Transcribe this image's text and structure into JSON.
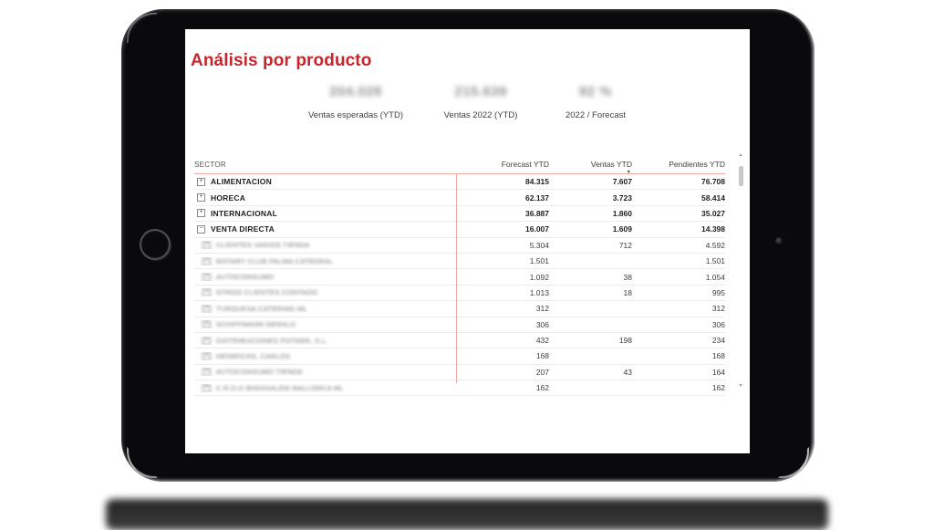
{
  "device": {
    "type": "tablet",
    "frame_color": "#0a0a0c"
  },
  "report": {
    "title": "Análisis por producto",
    "title_color": "#c4262b",
    "accent_line_color": "#efa9a3",
    "kpis": [
      {
        "value": "204.028",
        "label": "Ventas esperadas (YTD)",
        "blurred": true
      },
      {
        "value": "215.639",
        "label": "Ventas 2022 (YTD)",
        "blurred": true
      },
      {
        "value": "92 %",
        "label": "2022 / Forecast",
        "blurred": true
      }
    ],
    "table": {
      "columns": [
        "SECTOR",
        "Forecast YTD",
        "Ventas YTD",
        "Pendientes YTD"
      ],
      "sorted_by": "Ventas YTD",
      "sort_direction": "desc",
      "rows": [
        {
          "type": "section",
          "icon": "expand",
          "blurred": false,
          "label": "ALIMENTACION",
          "forecast": "84.315",
          "ventas": "7.607",
          "pendientes": "76.708"
        },
        {
          "type": "section",
          "icon": "expand",
          "blurred": false,
          "label": "HORECA",
          "forecast": "62.137",
          "ventas": "3.723",
          "pendientes": "58.414"
        },
        {
          "type": "section",
          "icon": "expand",
          "blurred": false,
          "label": "INTERNACIONAL",
          "forecast": "36.887",
          "ventas": "1.860",
          "pendientes": "35.027"
        },
        {
          "type": "section",
          "icon": "collapse",
          "blurred": false,
          "label": "VENTA DIRECTA",
          "forecast": "16.007",
          "ventas": "1.609",
          "pendientes": "14.398"
        },
        {
          "type": "child",
          "icon": "expand",
          "blurred": true,
          "label": "CLIENTES VARIOS TIENDA",
          "forecast": "5.304",
          "ventas": "712",
          "pendientes": "4.592"
        },
        {
          "type": "child",
          "icon": "expand",
          "blurred": true,
          "label": "ROTARY CLUB PALMA CATEDRAL",
          "forecast": "1.501",
          "ventas": "",
          "pendientes": "1.501"
        },
        {
          "type": "child",
          "icon": "expand",
          "blurred": true,
          "label": "AUTOCONSUMO",
          "forecast": "1.092",
          "ventas": "38",
          "pendientes": "1.054"
        },
        {
          "type": "child",
          "icon": "expand",
          "blurred": true,
          "label": "OTROS CLIENTES CONTADO",
          "forecast": "1.013",
          "ventas": "18",
          "pendientes": "995"
        },
        {
          "type": "child",
          "icon": "expand",
          "blurred": true,
          "label": "TURQUESA CATERING ML",
          "forecast": "312",
          "ventas": "",
          "pendientes": "312"
        },
        {
          "type": "child",
          "icon": "expand",
          "blurred": true,
          "label": "SCHIFFMANN GERALD",
          "forecast": "306",
          "ventas": "",
          "pendientes": "306"
        },
        {
          "type": "child",
          "icon": "expand",
          "blurred": true,
          "label": "DISTRIBUCIONES FOTGER, S.L.",
          "forecast": "432",
          "ventas": "198",
          "pendientes": "234"
        },
        {
          "type": "child",
          "icon": "expand",
          "blurred": true,
          "label": "HEINRICHS, CARLOS",
          "forecast": "168",
          "ventas": "",
          "pendientes": "168"
        },
        {
          "type": "child",
          "icon": "expand",
          "blurred": true,
          "label": "AUTOCONSUMO TIENDA",
          "forecast": "207",
          "ventas": "43",
          "pendientes": "164"
        },
        {
          "type": "child",
          "icon": "expand",
          "blurred": true,
          "label": "C.R.D.O BINISSALEM MALLORCA ML",
          "forecast": "162",
          "ventas": "",
          "pendientes": "162"
        }
      ]
    }
  },
  "icons": {
    "expand": "+",
    "collapse": "−",
    "sort_desc": "▼",
    "scroll_up": "▲",
    "scroll_down": "▼"
  }
}
